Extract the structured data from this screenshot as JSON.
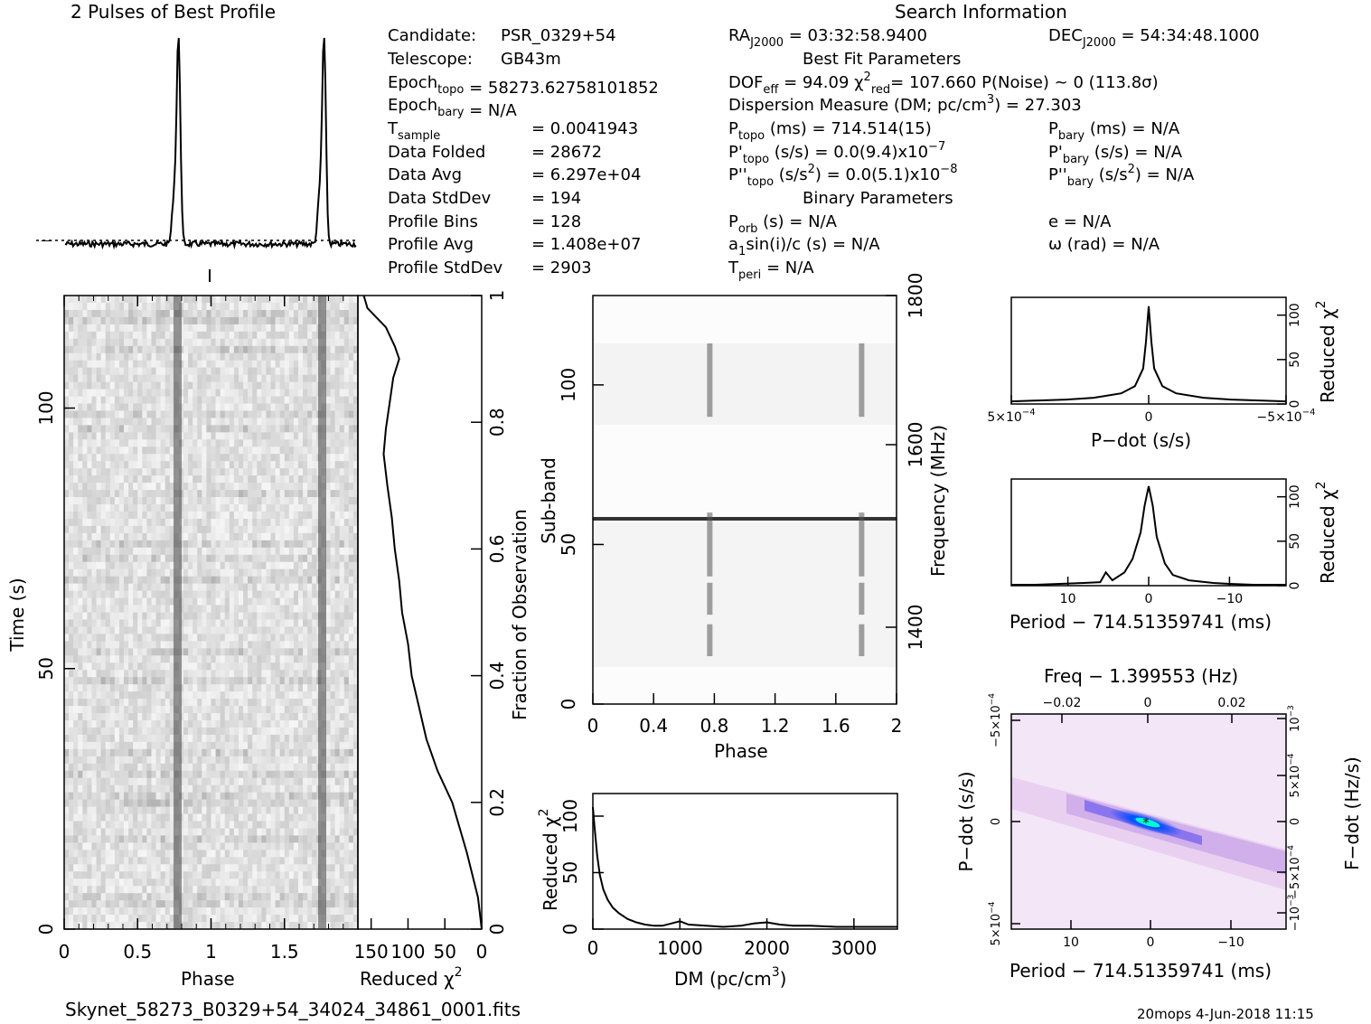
{
  "title": "2 Pulses of Best Profile",
  "search_title": "Search Information",
  "fit_title": "Best Fit Parameters",
  "binary_title": "Binary Parameters",
  "footer": {
    "filename": "Skynet_58273_B0329+54_34024_34861_0001.fits",
    "stamp": "20mops   4-Jun-2018 11:15"
  },
  "info_left": [
    {
      "label": "Candidate:",
      "value": "PSR_0329+54"
    },
    {
      "label": "Telescope:",
      "value": "GB43m"
    },
    {
      "label": "Epoch",
      "sub": "topo",
      "value": "= 58273.62758101852"
    },
    {
      "label": "Epoch",
      "sub": "bary",
      "value": "= N/A"
    },
    {
      "label": "T",
      "sub": "sample",
      "value": "=   0.0041943"
    },
    {
      "label": "Data Folded",
      "value": "=   28672"
    },
    {
      "label": "Data Avg",
      "value": "=   6.297e+04"
    },
    {
      "label": "Data StdDev",
      "value": "=   194"
    },
    {
      "label": "Profile Bins",
      "value": "=   128"
    },
    {
      "label": "Profile Avg",
      "value": "=   1.408e+07"
    },
    {
      "label": "Profile StdDev",
      "value": "=   2903"
    }
  ],
  "info_mid": [
    {
      "parts": [
        [
          "RA",
          ""
        ],
        [
          "J2000",
          "sub"
        ],
        [
          " = 03:32:58.9400",
          ""
        ]
      ]
    },
    {
      "parts": [
        [
          "DOF",
          ""
        ],
        [
          "eff",
          "sub"
        ],
        [
          " = 94.09  χ",
          ""
        ],
        [
          "2",
          "sup"
        ],
        [
          "red",
          "sub2"
        ],
        [
          "= 107.660   P(Noise) ~ 0    (113.8σ)",
          ""
        ]
      ]
    },
    {
      "parts": [
        [
          "Dispersion Measure (DM; pc/cm",
          ""
        ],
        [
          "3",
          "sup"
        ],
        [
          ") = 27.303",
          ""
        ]
      ]
    },
    {
      "parts": [
        [
          "P",
          ""
        ],
        [
          "topo",
          "sub"
        ],
        [
          " (ms) =  714.514(15)",
          ""
        ]
      ]
    },
    {
      "parts": [
        [
          "P'",
          ""
        ],
        [
          "topo",
          "sub"
        ],
        [
          " (s/s) = 0.0(9.4)x10",
          ""
        ],
        [
          "−7",
          "sup"
        ]
      ]
    },
    {
      "parts": [
        [
          "P''",
          ""
        ],
        [
          "topo",
          "sub"
        ],
        [
          " (s/s",
          ""
        ],
        [
          "2",
          "sup"
        ],
        [
          ") = 0.0(5.1)x10",
          ""
        ],
        [
          "−8",
          "sup"
        ]
      ]
    },
    {
      "parts": [
        [
          "P",
          ""
        ],
        [
          "orb",
          "sub"
        ],
        [
          " (s) = N/A",
          ""
        ]
      ]
    },
    {
      "parts": [
        [
          "a",
          ""
        ],
        [
          "1",
          "sub"
        ],
        [
          "sin(i)/c (s) = N/A",
          ""
        ]
      ]
    },
    {
      "parts": [
        [
          "T",
          ""
        ],
        [
          "peri",
          "sub"
        ],
        [
          " = N/A",
          ""
        ]
      ]
    }
  ],
  "info_right": [
    {
      "parts": [
        [
          "DEC",
          ""
        ],
        [
          "J2000",
          "sub"
        ],
        [
          " = 54:34:48.1000",
          ""
        ]
      ]
    },
    {
      "parts": [
        [
          "P",
          ""
        ],
        [
          "bary",
          "sub"
        ],
        [
          " (ms) = N/A",
          ""
        ]
      ]
    },
    {
      "parts": [
        [
          "P'",
          ""
        ],
        [
          "bary",
          "sub"
        ],
        [
          " (s/s) = N/A",
          ""
        ]
      ]
    },
    {
      "parts": [
        [
          "P''",
          ""
        ],
        [
          "bary",
          "sub"
        ],
        [
          " (s/s",
          ""
        ],
        [
          "2",
          "sup"
        ],
        [
          ") = N/A",
          ""
        ]
      ]
    },
    {
      "parts": [
        [
          "e = N/A",
          ""
        ]
      ]
    },
    {
      "parts": [
        [
          "ω (rad) = N/A",
          ""
        ]
      ]
    }
  ],
  "chart_data": [
    {
      "type": "line",
      "name": "profile",
      "title": "2 Pulses of Best Profile",
      "x_range": [
        0,
        2
      ],
      "peaks": [
        0.78,
        1.78
      ]
    },
    {
      "type": "heatmap",
      "name": "time-phase",
      "xlabel": "Phase",
      "ylabel": "Time (s)",
      "x_ticks": [
        "0",
        "0.5",
        "1",
        "1.5"
      ],
      "y_ticks": [
        "0",
        "50",
        "100"
      ],
      "xlim": [
        0,
        2
      ],
      "ylim": [
        0,
        120
      ]
    },
    {
      "type": "line",
      "name": "reduced-chi2-vs-time",
      "xlabel": "Reduced χ",
      "xlabel_sup": "2",
      "x_ticks": [
        "150",
        "100",
        "50",
        "0"
      ],
      "right_label": "Fraction of Observation",
      "y_ticks": [
        "0",
        "0.2",
        "0.4",
        "0.6",
        "0.8",
        "1"
      ],
      "x": [
        160,
        155,
        130,
        118,
        112,
        120,
        125,
        130,
        133,
        128,
        122,
        118,
        112,
        108,
        100,
        95,
        85,
        75,
        60,
        40,
        20,
        5,
        0
      ],
      "y": [
        1.0,
        0.98,
        0.95,
        0.92,
        0.9,
        0.87,
        0.83,
        0.79,
        0.75,
        0.7,
        0.65,
        0.6,
        0.55,
        0.5,
        0.45,
        0.4,
        0.35,
        0.3,
        0.25,
        0.2,
        0.12,
        0.05,
        0.0
      ]
    },
    {
      "type": "heatmap",
      "name": "subband-phase",
      "xlabel": "Phase",
      "ylabel": "Sub-band",
      "right_label": "Frequency (MHz)",
      "x_ticks": [
        "0",
        "0.4",
        "0.8",
        "1.2",
        "1.6",
        "2"
      ],
      "y_ticks": [
        "0",
        "50",
        "100"
      ],
      "right_ticks": [
        "1400",
        "1600",
        "1800"
      ],
      "xlim": [
        0,
        2
      ],
      "ylim": [
        0,
        128
      ]
    },
    {
      "type": "line",
      "name": "dm-curve",
      "xlabel": "DM (pc/cm",
      "xlabel_sup": "3",
      "ylabel": "Reduced χ",
      "x_ticks": [
        "0",
        "1000",
        "2000",
        "3000"
      ],
      "y_ticks": [
        "0",
        "50",
        "100"
      ],
      "xlim": [
        0,
        3500
      ],
      "ylim": [
        0,
        120
      ],
      "x": [
        0,
        20,
        50,
        80,
        120,
        170,
        230,
        300,
        400,
        500,
        600,
        700,
        800,
        900,
        1000,
        1100,
        1300,
        1500,
        1700,
        1850,
        2000,
        2150,
        2300,
        2500,
        2800,
        3100,
        3500
      ],
      "y": [
        108,
        90,
        65,
        48,
        35,
        26,
        19,
        14,
        9,
        6,
        4,
        3,
        3,
        5,
        7,
        4,
        3,
        2,
        3,
        5,
        6,
        4,
        3,
        3,
        2,
        2,
        2
      ]
    },
    {
      "type": "line",
      "name": "pdot-curve",
      "xlabel": "P−dot (s/s)",
      "right_label": "Reduced χ",
      "x_ticks": [
        "5×10",
        "0",
        "−5×10"
      ],
      "x_tick_exp": "−4",
      "right_ticks": [
        "0",
        "50",
        "100"
      ],
      "xlim": [
        0.0005,
        -0.0005
      ],
      "ylim": [
        0,
        120
      ],
      "x": [
        0.0005,
        0.0004,
        0.0003,
        0.0002,
        0.0001,
        5e-05,
        2e-05,
        1e-05,
        0,
        -1e-05,
        -2e-05,
        -5e-05,
        -0.0001,
        -0.0002,
        -0.0003,
        -0.0004,
        -0.0005
      ],
      "y": [
        3,
        4,
        5,
        7,
        12,
        20,
        40,
        70,
        110,
        70,
        40,
        20,
        12,
        7,
        5,
        4,
        3
      ]
    },
    {
      "type": "line",
      "name": "period-curve",
      "xlabel": "Period − 714.51359741 (ms)",
      "right_label": "Reduced χ",
      "x_ticks": [
        "10",
        "0",
        "−10"
      ],
      "right_ticks": [
        "0",
        "50",
        "100"
      ],
      "xlim": [
        17,
        -17
      ],
      "ylim": [
        0,
        120
      ],
      "x": [
        17,
        14,
        11,
        8,
        6,
        5.3,
        4.5,
        3,
        2,
        1,
        0.5,
        0,
        -0.5,
        -1,
        -2,
        -3,
        -5,
        -8,
        -10,
        -13,
        -17
      ],
      "y": [
        1,
        1,
        2,
        3,
        4,
        15,
        6,
        15,
        30,
        60,
        90,
        112,
        90,
        55,
        25,
        12,
        6,
        3,
        2,
        1,
        1
      ]
    },
    {
      "type": "heatmap",
      "name": "period-pdot",
      "top_label": "Freq − 1.399553 (Hz)",
      "top_ticks": [
        "−0.02",
        "0",
        "0.02"
      ],
      "xlabel": "Period − 714.51359741 (ms)",
      "x_ticks": [
        "10",
        "0",
        "−10"
      ],
      "ylabel": "P−dot (s/s)",
      "y_ticks": [
        "5×10",
        "0",
        "−5×10"
      ],
      "y_tick_exp": "−4",
      "right_label": "F−dot (Hz/s)",
      "right_ticks": [
        "−10",
        "−5×10",
        "0",
        "5×10",
        "10"
      ],
      "right_exps": [
        "−3",
        "−4",
        "",
        "−4",
        "−3"
      ]
    }
  ]
}
